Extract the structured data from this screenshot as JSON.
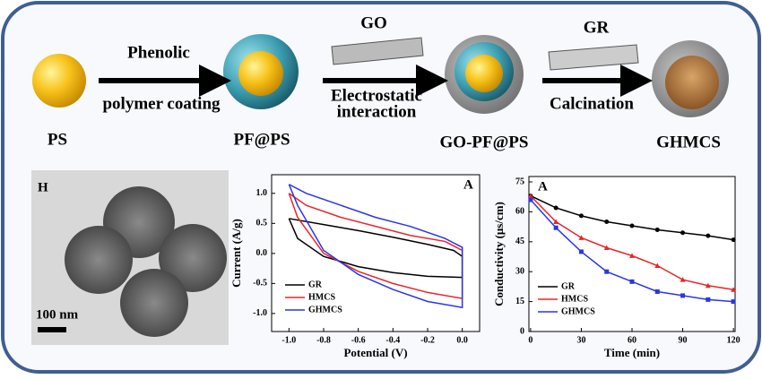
{
  "schematic": {
    "nodes": [
      {
        "label": "PS"
      },
      {
        "label": "PF@PS"
      },
      {
        "label": "GO-PF@PS"
      },
      {
        "label": "GHMCS"
      }
    ],
    "arrows": [
      {
        "label_top": "Phenolic",
        "label_bottom": [
          "polymer coating"
        ]
      },
      {
        "label_top": "GO",
        "label_bottom": [
          "Electrostatic",
          "interaction"
        ]
      },
      {
        "label_top": "GR",
        "label_bottom": [
          "Calcination"
        ]
      }
    ]
  },
  "image": {
    "panel_label": "H",
    "scale_bar": "100 nm"
  },
  "chart_data": [
    {
      "type": "loop",
      "panel_label": "A",
      "x_label": "Potential (V)",
      "y_label": "Current (A/g)",
      "xlim": [
        -1.1,
        0.1
      ],
      "ylim": [
        -1.3,
        1.31
      ],
      "xticks": [
        {
          "value": -1.0,
          "label": "-1.0"
        },
        -0.8,
        -0.6,
        -0.4,
        -0.2,
        {
          "value": 0.0,
          "label": "0.0"
        }
      ],
      "yticks": [
        {
          "value": -1.0,
          "label": "-1.0"
        },
        -0.5,
        {
          "value": 0.0,
          "label": "0.0"
        },
        0.5,
        {
          "value": 1.0,
          "label": "1.0"
        }
      ],
      "series": [
        {
          "name": "GR",
          "color": "#000000",
          "x": [
            -1.0,
            -0.8,
            -0.6,
            -0.4,
            -0.2,
            -0.05,
            0.0,
            0.0,
            -0.2,
            -0.4,
            -0.6,
            -0.8,
            -0.95,
            -1.0
          ],
          "values": [
            0.58,
            0.48,
            0.38,
            0.27,
            0.15,
            0.05,
            -0.05,
            -0.4,
            -0.38,
            -0.32,
            -0.22,
            -0.05,
            0.25,
            0.58
          ]
        },
        {
          "name": "HMCS",
          "color": "#e8262a",
          "x": [
            -1.0,
            -0.9,
            -0.7,
            -0.5,
            -0.3,
            -0.1,
            0.0,
            0.0,
            -0.2,
            -0.4,
            -0.6,
            -0.8,
            -0.95,
            -1.0
          ],
          "values": [
            1.0,
            0.8,
            0.6,
            0.45,
            0.3,
            0.2,
            0.05,
            -0.75,
            -0.65,
            -0.5,
            -0.3,
            0.0,
            0.6,
            1.0
          ]
        },
        {
          "name": "GHMCS",
          "color": "#2a35e8",
          "x": [
            -1.0,
            -0.9,
            -0.7,
            -0.5,
            -0.3,
            -0.1,
            0.0,
            0.0,
            -0.2,
            -0.4,
            -0.6,
            -0.8,
            -0.95,
            -1.0
          ],
          "values": [
            1.15,
            1.0,
            0.8,
            0.6,
            0.45,
            0.25,
            0.1,
            -0.9,
            -0.8,
            -0.6,
            -0.35,
            0.05,
            0.8,
            1.15
          ]
        }
      ]
    },
    {
      "type": "line",
      "panel_label": "A",
      "x_label": "Time (min)",
      "y_label": "Conductivity (μs/cm)",
      "xlim": [
        -1,
        121
      ],
      "ylim": [
        0,
        77.7
      ],
      "xticks": [
        0,
        30,
        60,
        90,
        120
      ],
      "yticks": [
        0,
        15,
        30,
        45,
        60,
        75
      ],
      "x": [
        0,
        15,
        30,
        45,
        60,
        75,
        90,
        105,
        120
      ],
      "series": [
        {
          "name": "GR",
          "color": "#000000",
          "marker": "circle",
          "values": [
            68,
            62,
            58,
            55,
            53,
            51,
            49.5,
            48,
            46
          ]
        },
        {
          "name": "HMCS",
          "color": "#e8262a",
          "marker": "triangle",
          "values": [
            68,
            55,
            47,
            42,
            38,
            33,
            26,
            23,
            21
          ]
        },
        {
          "name": "GHMCS",
          "color": "#2a35e8",
          "marker": "square",
          "values": [
            66,
            52,
            40,
            30,
            25,
            20,
            18,
            16,
            15
          ]
        }
      ]
    }
  ]
}
